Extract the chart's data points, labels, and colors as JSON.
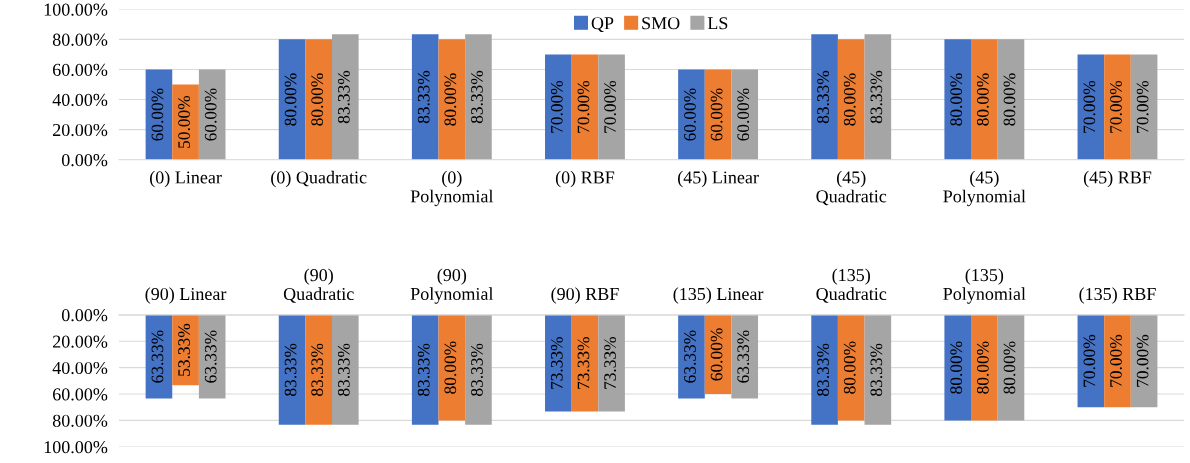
{
  "chart_data": [
    {
      "type": "bar",
      "categories": [
        "(0) Linear",
        "(0) Quadratic",
        "(0)\nPolynomial",
        "(0) RBF",
        "(45) Linear",
        "(45)\nQuadratic",
        "(45)\nPolynomial",
        "(45) RBF"
      ],
      "series": [
        {
          "name": "QP",
          "color": "#4472c4",
          "values": [
            60,
            80,
            83.33,
            70,
            60,
            83.33,
            80,
            70
          ],
          "value_labels": [
            "60.00%",
            "80.00%",
            "83.33%",
            "70.00%",
            "60.00%",
            "83.33%",
            "80.00%",
            "70.00%"
          ]
        },
        {
          "name": "SMO",
          "color": "#ed7d31",
          "values": [
            50,
            80,
            80,
            70,
            60,
            80,
            80,
            70
          ],
          "value_labels": [
            "50.00%",
            "80.00%",
            "80.00%",
            "70.00%",
            "60.00%",
            "80.00%",
            "80.00%",
            "70.00%"
          ]
        },
        {
          "name": "LS",
          "color": "#a5a5a5",
          "values": [
            60,
            83.33,
            83.33,
            70,
            60,
            83.33,
            80,
            70
          ],
          "value_labels": [
            "60.00%",
            "83.33%",
            "83.33%",
            "70.00%",
            "60.00%",
            "83.33%",
            "80.00%",
            "70.00%"
          ]
        }
      ],
      "ylim": [
        0,
        100
      ],
      "yticks": [
        {
          "value": 0,
          "label": "0.00%"
        },
        {
          "value": 20,
          "label": "20.00%"
        },
        {
          "value": 40,
          "label": "40.00%"
        },
        {
          "value": 60,
          "label": "60.00%"
        },
        {
          "value": 80,
          "label": "80.00%"
        },
        {
          "value": 100,
          "label": "100.00%"
        }
      ],
      "grid": "y",
      "legend": "top"
    },
    {
      "type": "bar",
      "categories": [
        "(90) Linear",
        "(90)\nQuadratic",
        "(90)\nPolynomial",
        "(90) RBF",
        "(135) Linear",
        "(135)\nQuadratic",
        "(135)\nPolynomial",
        "(135) RBF"
      ],
      "series": [
        {
          "color": "#4472c4",
          "values": [
            63.33,
            83.33,
            83.33,
            73.33,
            63.33,
            83.33,
            80,
            70
          ],
          "value_labels": [
            "63.33%",
            "83.33%",
            "83.33%",
            "73.33%",
            "63.33%",
            "83.33%",
            "80.00%",
            "70.00%"
          ]
        },
        {
          "color": "#ed7d31",
          "values": [
            53.33,
            83.33,
            80,
            73.33,
            60,
            80,
            80,
            70
          ],
          "value_labels": [
            "53.33%",
            "83.33%",
            "80.00%",
            "73.33%",
            "60.00%",
            "80.00%",
            "80.00%",
            "70.00%"
          ]
        },
        {
          "color": "#a5a5a5",
          "values": [
            63.33,
            83.33,
            83.33,
            73.33,
            63.33,
            83.33,
            80,
            70
          ],
          "value_labels": [
            "63.33%",
            "83.33%",
            "83.33%",
            "73.33%",
            "63.33%",
            "83.33%",
            "80.00%",
            "70.00%"
          ]
        }
      ],
      "ylim": [
        100,
        0
      ],
      "yticks": [
        {
          "value": 0,
          "label": "0.00%"
        },
        {
          "value": 20,
          "label": "20.00%"
        },
        {
          "value": 40,
          "label": "40.00%"
        },
        {
          "value": 60,
          "label": "60.00%"
        },
        {
          "value": 80,
          "label": "80.00%"
        },
        {
          "value": 100,
          "label": "100.00%"
        }
      ],
      "grid": "y"
    }
  ]
}
